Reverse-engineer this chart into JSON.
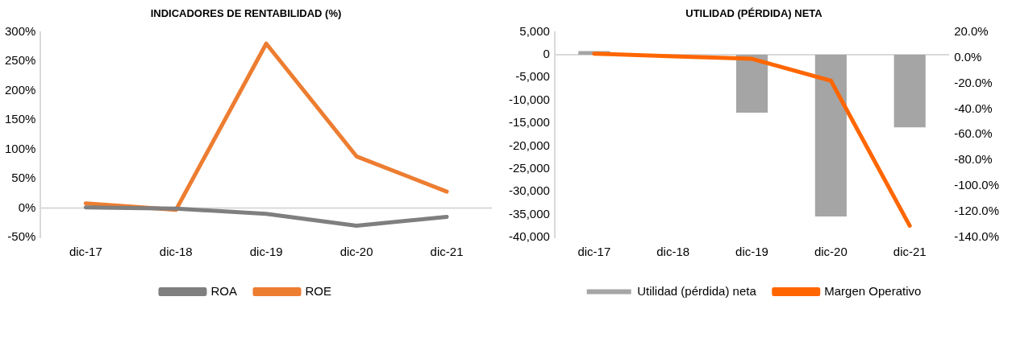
{
  "chart_data": [
    {
      "type": "line",
      "title": "INDICADORES DE RENTABILIDAD (%)",
      "categories": [
        "dic-17",
        "dic-18",
        "dic-19",
        "dic-20",
        "dic-21"
      ],
      "series": [
        {
          "name": "ROA",
          "color": "#7f7f7f",
          "values": [
            1,
            -1,
            -10,
            -30,
            -15
          ]
        },
        {
          "name": "ROE",
          "color": "#ed7d31",
          "values": [
            8,
            -3,
            280,
            88,
            28
          ]
        }
      ],
      "ylim": [
        -50,
        300
      ],
      "yticks": [
        {
          "value": -50,
          "label": "-50%"
        },
        {
          "value": 0,
          "label": "0%"
        },
        {
          "value": 50,
          "label": "50%"
        },
        {
          "value": 100,
          "label": "100%"
        },
        {
          "value": 150,
          "label": "150%"
        },
        {
          "value": 200,
          "label": "200%"
        },
        {
          "value": 250,
          "label": "250%"
        },
        {
          "value": 300,
          "label": "300%"
        }
      ],
      "ref_lines": [
        {
          "axis": "y",
          "value": 0,
          "color": "#d9d9d9"
        }
      ],
      "grid": false,
      "legend": "bottom",
      "marker": "none",
      "line_style": "solid"
    },
    {
      "type": "bar",
      "title": "UTILIDAD (PÉRDIDA) NETA",
      "categories": [
        "dic-17",
        "dic-18",
        "dic-19",
        "dic-20",
        "dic-21"
      ],
      "series": [
        {
          "name": "Utilidad (pérdida) neta",
          "color": "#a5a5a5",
          "values": [
            800,
            null,
            -12700,
            -35400,
            -15900
          ]
        },
        {
          "name": "Margen Operativo",
          "type": "line",
          "axis": "y2",
          "color": "#ff6600",
          "values": [
            3,
            1,
            -1,
            -18,
            -131
          ]
        }
      ],
      "ylim": [
        -40000,
        5000
      ],
      "yticks": [
        {
          "value": -40000,
          "label": "-40,000"
        },
        {
          "value": -35000,
          "label": "-35,000"
        },
        {
          "value": -30000,
          "label": "-30,000"
        },
        {
          "value": -25000,
          "label": "-25,000"
        },
        {
          "value": -20000,
          "label": "-20,000"
        },
        {
          "value": -15000,
          "label": "-15,000"
        },
        {
          "value": -10000,
          "label": "-10,000"
        },
        {
          "value": -5000,
          "label": "-5,000"
        },
        {
          "value": 0,
          "label": "0"
        },
        {
          "value": 5000,
          "label": "5,000"
        }
      ],
      "y2lim": [
        -140,
        20
      ],
      "y2ticks": [
        {
          "value": -140,
          "label": "-140.0%"
        },
        {
          "value": -120,
          "label": "-120.0%"
        },
        {
          "value": -100,
          "label": "-100.0%"
        },
        {
          "value": -80,
          "label": "-80.0%"
        },
        {
          "value": -60,
          "label": "-60.0%"
        },
        {
          "value": -40,
          "label": "-40.0%"
        },
        {
          "value": -20,
          "label": "-20.0%"
        },
        {
          "value": 0,
          "label": "0.0%"
        },
        {
          "value": 20,
          "label": "20.0%"
        }
      ],
      "ref_lines": [
        {
          "axis": "y",
          "value": 0,
          "color": "#d9d9d9"
        }
      ],
      "grid": false,
      "legend": "bottom",
      "marker": "none",
      "line_style": "solid"
    }
  ]
}
